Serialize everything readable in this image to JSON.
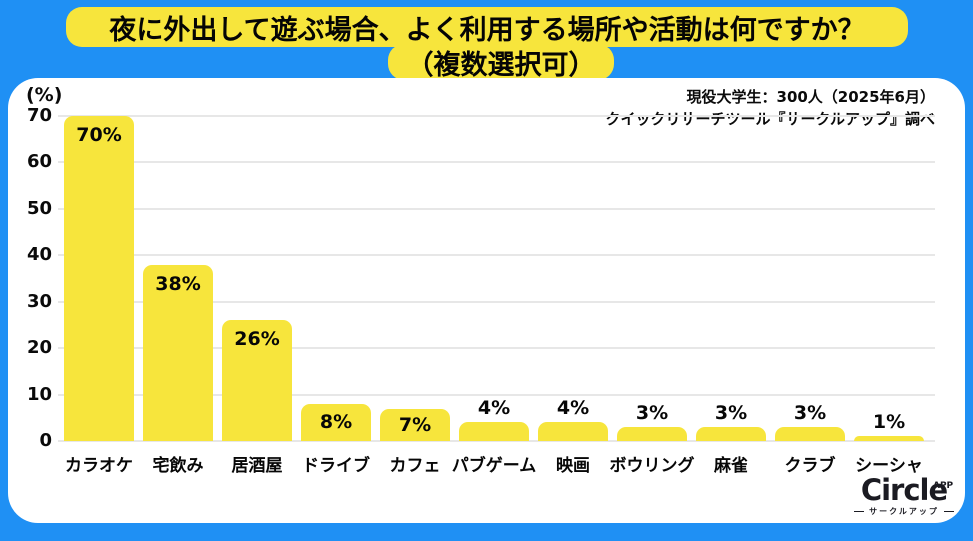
{
  "page": {
    "background_color": "#1F90F4",
    "accent_yellow": "#F7E53C",
    "card_color": "#ffffff",
    "text_color": "#0a0a0a"
  },
  "title": {
    "line1": "夜に外出して遊ぶ場合、よく利用する場所や活動は何ですか？",
    "line2": "（複数選択可）"
  },
  "survey_note": {
    "line1": "現役大学生：300人（2025年6月）",
    "line2": "クイックリサーチツール『サークルアップ』調べ"
  },
  "chart_data": {
    "type": "bar",
    "title": "夜に外出して遊ぶ場合、よく利用する場所や活動は何ですか？（複数選択可）",
    "categories": [
      "カラオケ",
      "宅飲み",
      "居酒屋",
      "ドライブ",
      "カフェ",
      "パブゲーム",
      "映画",
      "ボウリング",
      "麻雀",
      "クラブ",
      "シーシャ"
    ],
    "values": [
      70,
      38,
      26,
      8,
      7,
      4,
      4,
      3,
      3,
      3,
      1
    ],
    "value_labels": [
      "70%",
      "38%",
      "26%",
      "8%",
      "7%",
      "4%",
      "4%",
      "3%",
      "3%",
      "3%",
      "1%"
    ],
    "xlabel": "",
    "ylabel": "(%)",
    "ylim": [
      0,
      70
    ],
    "yticks": [
      0,
      10,
      20,
      30,
      40,
      50,
      60,
      70
    ],
    "grid": true,
    "legend": false,
    "bar_color": "#F7E53C",
    "gridline_color": "#e7e7e7"
  },
  "logo": {
    "brand": "Circle",
    "superscript": "APP",
    "subtitle": "サークルアップ"
  }
}
